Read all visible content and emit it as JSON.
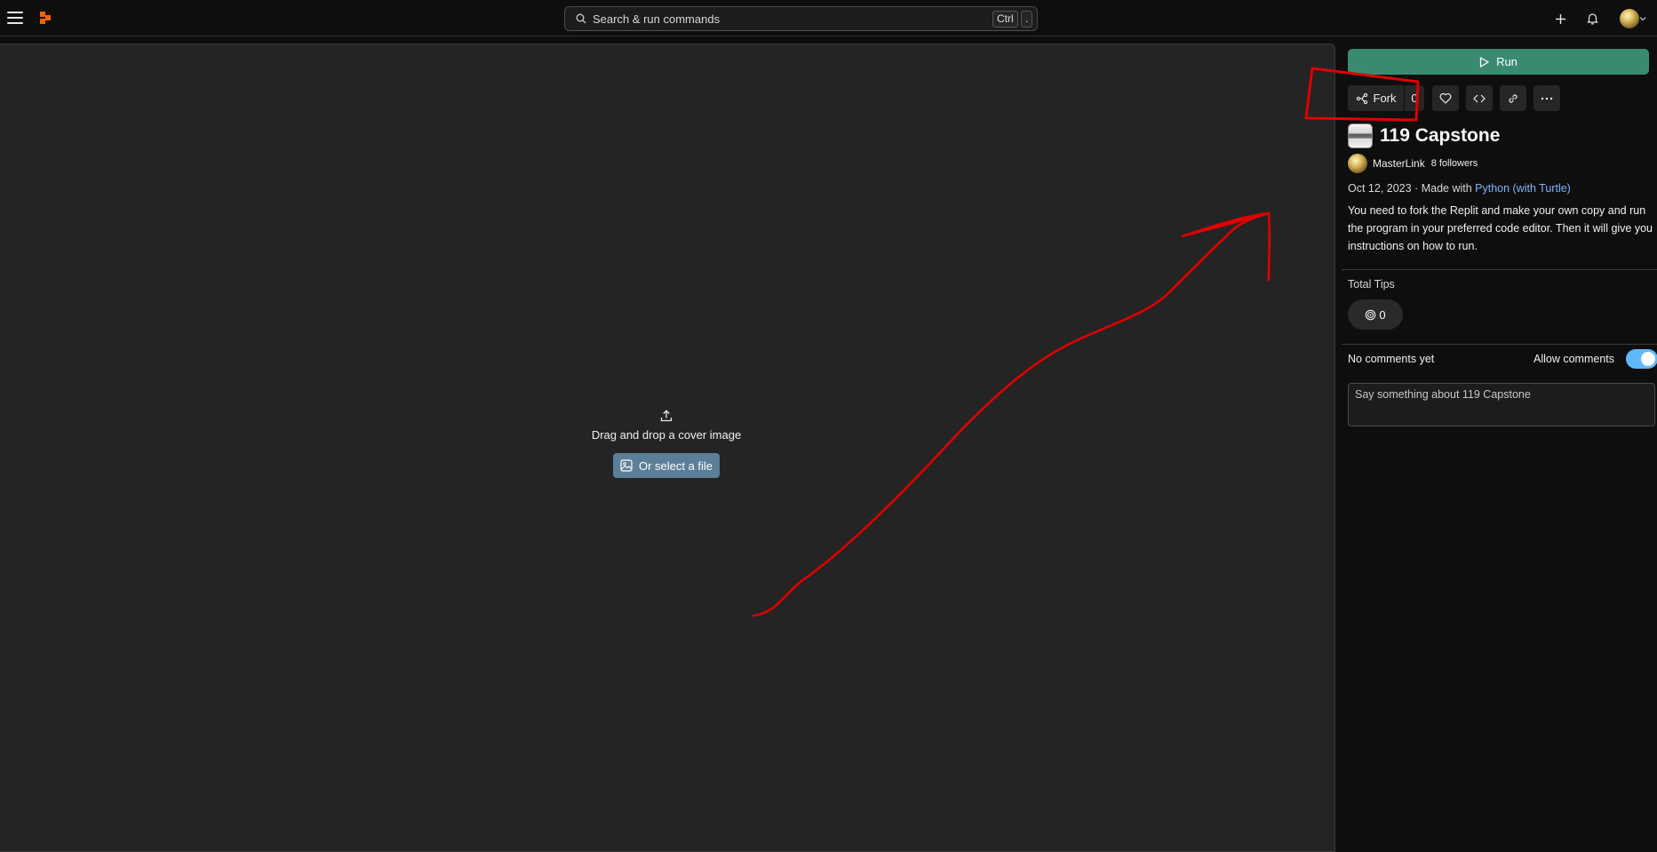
{
  "search": {
    "placeholder": "Search & run commands",
    "shortcut_key1": "Ctrl",
    "shortcut_key2": "."
  },
  "panel": {
    "run_label": "Run",
    "fork_label": "Fork",
    "fork_count": "0",
    "repl_title": "119 Capstone",
    "owner_name": "MasterLink",
    "followers": "8 followers",
    "date": "Oct 12, 2023",
    "made_with_prefix": "· Made with",
    "language": "Python (with Turtle)",
    "description": "You need to fork the Replit and make your own copy and run the program in your preferred code editor. Then it will give you instructions on how to run.",
    "tips_label": "Total Tips",
    "tips_count": "0",
    "no_comments": "No comments yet",
    "allow_comments": "Allow comments",
    "allow_comments_on": true,
    "comment_placeholder": "Say something about 119 Capstone"
  },
  "cover": {
    "drop_text": "Drag and drop a cover image",
    "select_label": "Or select a file"
  },
  "colors": {
    "accent_run": "#3a8a72",
    "logo": "#f26207",
    "link": "#7cb5ff",
    "annotation": "#e00000"
  }
}
